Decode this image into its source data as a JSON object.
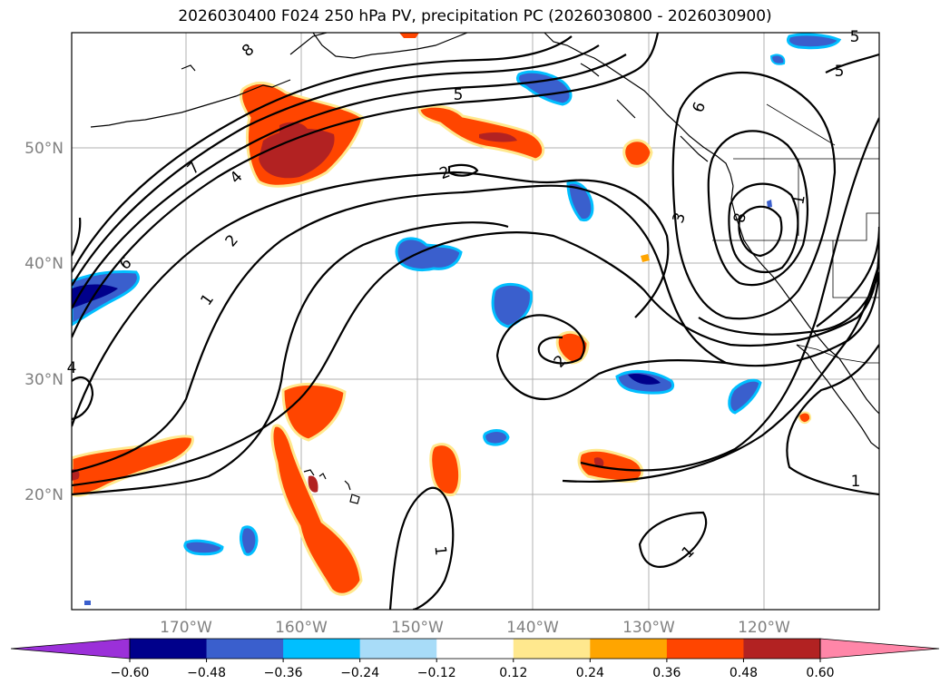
{
  "title": "2026030400 F024 250 hPa PV, precipitation PC (2026030800 - 2026030900)",
  "lat_labels": [
    "50°N",
    "40°N",
    "30°N",
    "20°N"
  ],
  "lon_labels": [
    "170°W",
    "160°W",
    "150°W",
    "140°W",
    "130°W",
    "120°W"
  ],
  "colorbar": {
    "ticks": [
      "−0.60",
      "−0.48",
      "−0.36",
      "−0.24",
      "−0.12",
      "0.12",
      "0.24",
      "0.36",
      "0.48",
      "0.60"
    ],
    "colors": [
      "#9b30d9",
      "#00008b",
      "#3a5fcd",
      "#00bfff",
      "#a8dcf8",
      "#ffffff",
      "#ffe88e",
      "#ffa500",
      "#ff4500",
      "#b22222",
      "#ff86a8"
    ]
  },
  "contour_labels": [
    "5",
    "5",
    "6",
    "7",
    "4",
    "6",
    "2",
    "1",
    "8",
    "3",
    "8",
    "2",
    "1",
    "1",
    "1",
    "2",
    "1",
    "4",
    "5"
  ],
  "anomaly_colors": {
    "red": "#ff4500",
    "dark_red": "#b22222",
    "orange": "#ffa500",
    "yellow": "#ffe88e",
    "blue": "#3a5fcd",
    "dark_blue": "#00008b",
    "cyan": "#00bfff",
    "light_blue": "#a8dcf8"
  }
}
